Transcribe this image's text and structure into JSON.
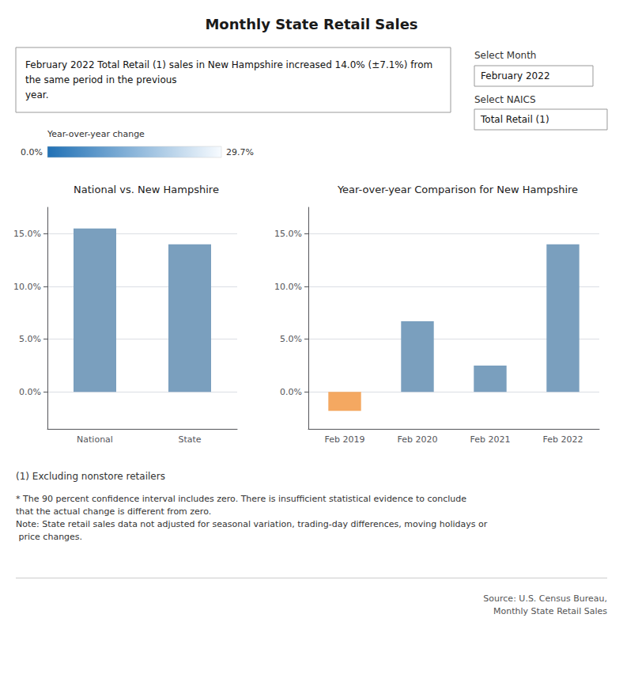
{
  "title": "Monthly State Retail Sales",
  "annotations": [
    "February 2022 Total Retail (1) sales in New Hampshire increased 14.0% (±7.1%) from the same period in the previous\nyear.",
    "Select Month",
    "February 2022",
    "Select NAICS",
    "Total Retail (1)",
    "Year-over-year change",
    "0.0%",
    "29.7%",
    "(1) Excluding nonstore retailers",
    "* The 90 percent confidence interval includes zero. There is insufficient statistical evidence to conclude that the actual change is different from zero.\nNote: State retail sales data not adjusted for seasonal variation, trading-day differences, moving holidays or price changes.",
    "Source: U.S. Census Bureau,\nMonthly State Retail Sales"
  ],
  "chart_data": [
    {
      "type": "bar",
      "title": "National vs. New Hampshire",
      "categories": [
        "National",
        "State"
      ],
      "values": [
        15.5,
        14.0
      ],
      "color": "#7a9fbe",
      "ylim": [
        -3.5,
        17.5
      ],
      "yticks": [
        {
          "value": 0.0,
          "label": "0.0%"
        },
        {
          "value": 5.0,
          "label": "5.0%"
        },
        {
          "value": 10.0,
          "label": "10.0%"
        },
        {
          "value": 15.0,
          "label": "15.0%"
        }
      ],
      "grid": true
    },
    {
      "type": "bar",
      "title": "Year-over-year Comparison for New Hampshire",
      "categories": [
        "Feb 2019",
        "Feb 2020",
        "Feb 2021",
        "Feb 2022"
      ],
      "values": [
        -1.8,
        6.7,
        2.5,
        14.0
      ],
      "colors": [
        "#f4a861",
        "#7a9fbe",
        "#7a9fbe",
        "#7a9fbe"
      ],
      "ylim": [
        -3.5,
        17.5
      ],
      "yticks": [
        {
          "value": 0.0,
          "label": "0.0%"
        },
        {
          "value": 5.0,
          "label": "5.0%"
        },
        {
          "value": 10.0,
          "label": "10.0%"
        },
        {
          "value": 15.0,
          "label": "15.0%"
        }
      ],
      "grid": true
    }
  ]
}
